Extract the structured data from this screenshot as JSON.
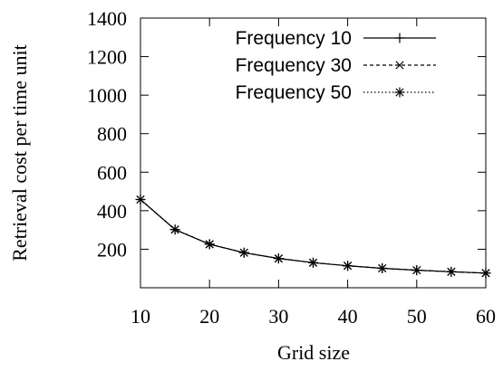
{
  "chart_data": {
    "type": "line",
    "title": "",
    "xlabel": "Grid size",
    "ylabel": "Retrieval cost per time unit",
    "xlim": [
      10,
      60
    ],
    "ylim": [
      0,
      1400
    ],
    "xticks": [
      10,
      20,
      30,
      40,
      50,
      60
    ],
    "yticks": [
      200,
      400,
      600,
      800,
      1000,
      1200,
      1400
    ],
    "grid": false,
    "legend_position": "top-right",
    "x": [
      10,
      15,
      20,
      25,
      30,
      35,
      40,
      45,
      50,
      55,
      60
    ],
    "series": [
      {
        "name": "Frequency 10",
        "marker": "plus",
        "dash": "solid",
        "values": [
          458,
          302,
          226,
          182,
          152,
          130,
          114,
          101,
          91,
          83,
          76
        ]
      },
      {
        "name": "Frequency 30",
        "marker": "cross",
        "dash": "dashed",
        "values": [
          458,
          302,
          226,
          182,
          152,
          130,
          114,
          101,
          91,
          83,
          76
        ]
      },
      {
        "name": "Frequency 50",
        "marker": "star",
        "dash": "dotted",
        "values": [
          458,
          302,
          226,
          182,
          152,
          130,
          114,
          101,
          91,
          83,
          76
        ]
      }
    ]
  }
}
